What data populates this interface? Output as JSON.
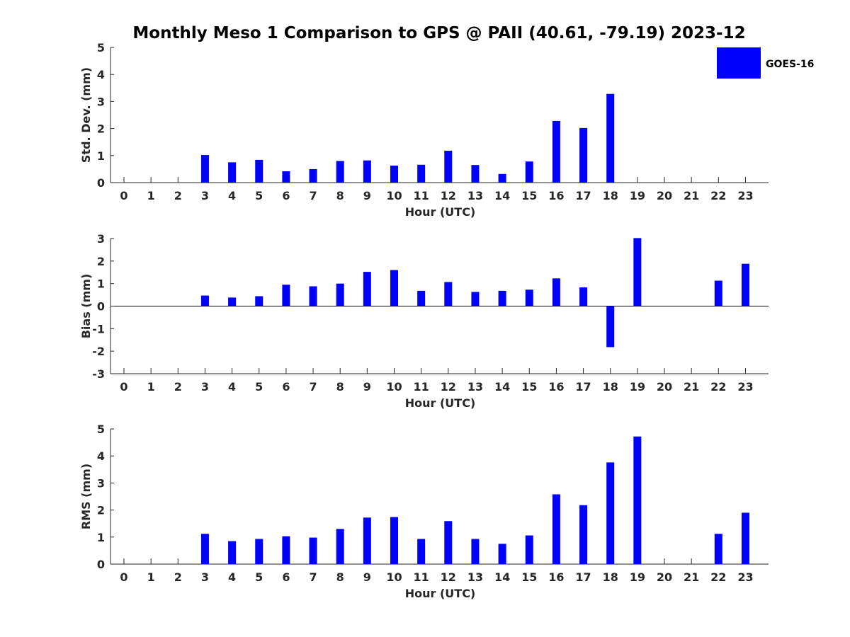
{
  "title": "Monthly Meso 1 Comparison to GPS @ PAII (40.61, -79.19) 2023-12",
  "legend": {
    "label": "GOES-16",
    "color": "#0000ff"
  },
  "chart_data": [
    {
      "type": "bar",
      "xlabel": "Hour (UTC)",
      "ylabel": "Std. Dev. (mm)",
      "categories": [
        "0",
        "1",
        "2",
        "3",
        "4",
        "5",
        "6",
        "7",
        "8",
        "9",
        "10",
        "11",
        "12",
        "13",
        "14",
        "15",
        "16",
        "17",
        "18",
        "19",
        "20",
        "21",
        "22",
        "23"
      ],
      "ylim": [
        0,
        5
      ],
      "yticks": [
        0,
        1,
        2,
        3,
        4,
        5
      ],
      "series": [
        {
          "name": "GOES-16",
          "values": [
            null,
            null,
            null,
            1.02,
            0.75,
            0.84,
            0.42,
            0.5,
            0.8,
            0.82,
            0.63,
            0.66,
            1.18,
            0.65,
            0.32,
            0.78,
            2.28,
            2.02,
            3.28,
            null,
            null,
            null,
            null,
            null
          ]
        }
      ]
    },
    {
      "type": "bar",
      "xlabel": "Hour (UTC)",
      "ylabel": "Bias (mm)",
      "categories": [
        "0",
        "1",
        "2",
        "3",
        "4",
        "5",
        "6",
        "7",
        "8",
        "9",
        "10",
        "11",
        "12",
        "13",
        "14",
        "15",
        "16",
        "17",
        "18",
        "19",
        "20",
        "21",
        "22",
        "23"
      ],
      "ylim": [
        -3,
        3
      ],
      "yticks": [
        -3,
        -2,
        -1,
        0,
        1,
        2,
        3
      ],
      "series": [
        {
          "name": "GOES-16",
          "values": [
            null,
            null,
            null,
            0.47,
            0.38,
            0.44,
            0.95,
            0.88,
            1.0,
            1.52,
            1.6,
            0.68,
            1.07,
            0.63,
            0.68,
            0.73,
            1.23,
            0.83,
            -1.82,
            3.02,
            null,
            null,
            1.13,
            1.88
          ]
        }
      ]
    },
    {
      "type": "bar",
      "xlabel": "Hour (UTC)",
      "ylabel": "RMS (mm)",
      "categories": [
        "0",
        "1",
        "2",
        "3",
        "4",
        "5",
        "6",
        "7",
        "8",
        "9",
        "10",
        "11",
        "12",
        "13",
        "14",
        "15",
        "16",
        "17",
        "18",
        "19",
        "20",
        "21",
        "22",
        "23"
      ],
      "ylim": [
        0,
        5
      ],
      "yticks": [
        0,
        1,
        2,
        3,
        4,
        5
      ],
      "series": [
        {
          "name": "GOES-16",
          "values": [
            null,
            null,
            null,
            1.12,
            0.85,
            0.93,
            1.03,
            0.98,
            1.3,
            1.72,
            1.74,
            0.93,
            1.59,
            0.93,
            0.75,
            1.06,
            2.58,
            2.18,
            3.76,
            4.72,
            null,
            null,
            1.12,
            1.9
          ]
        }
      ]
    }
  ]
}
